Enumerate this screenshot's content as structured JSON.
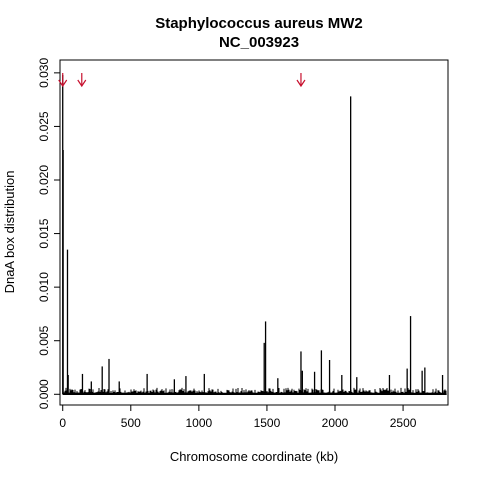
{
  "chart_data": {
    "type": "bar",
    "title": "Staphylococcus aureus MW2",
    "subtitle": "NC_003923",
    "xlabel": "Chromosome coordinate (kb)",
    "ylabel": "DnaA box distribution",
    "xlim": [
      -20,
      2830
    ],
    "ylim": [
      -0.001,
      0.0312
    ],
    "xticks": [
      0,
      500,
      1000,
      1500,
      2000,
      2500
    ],
    "yticks": [
      0.0,
      0.005,
      0.01,
      0.015,
      0.02,
      0.025,
      0.03
    ],
    "ytick_labels": [
      "0.000",
      "0.005",
      "0.010",
      "0.015",
      "0.020",
      "0.025",
      "0.030"
    ],
    "grid": false,
    "baseline_max_kb": 2820,
    "peaks": [
      {
        "x": 0,
        "y": 0.0298
      },
      {
        "x": 3,
        "y": 0.0228
      },
      {
        "x": 35,
        "y": 0.0135
      },
      {
        "x": 40,
        "y": 0.0018
      },
      {
        "x": 145,
        "y": 0.0019
      },
      {
        "x": 210,
        "y": 0.0012
      },
      {
        "x": 290,
        "y": 0.0026
      },
      {
        "x": 340,
        "y": 0.0033
      },
      {
        "x": 415,
        "y": 0.0012
      },
      {
        "x": 620,
        "y": 0.0019
      },
      {
        "x": 820,
        "y": 0.0014
      },
      {
        "x": 905,
        "y": 0.0017
      },
      {
        "x": 1040,
        "y": 0.0019
      },
      {
        "x": 1480,
        "y": 0.0048
      },
      {
        "x": 1490,
        "y": 0.0068
      },
      {
        "x": 1580,
        "y": 0.0015
      },
      {
        "x": 1750,
        "y": 0.004
      },
      {
        "x": 1760,
        "y": 0.0022
      },
      {
        "x": 1850,
        "y": 0.0021
      },
      {
        "x": 1900,
        "y": 0.0041
      },
      {
        "x": 1960,
        "y": 0.0032
      },
      {
        "x": 2050,
        "y": 0.0018
      },
      {
        "x": 2115,
        "y": 0.0278
      },
      {
        "x": 2160,
        "y": 0.0016
      },
      {
        "x": 2400,
        "y": 0.0018
      },
      {
        "x": 2530,
        "y": 0.0024
      },
      {
        "x": 2555,
        "y": 0.0073
      },
      {
        "x": 2640,
        "y": 0.0022
      },
      {
        "x": 2660,
        "y": 0.0025
      },
      {
        "x": 2790,
        "y": 0.0018
      }
    ],
    "arrows": [
      {
        "x": 0,
        "color": "#c8102e"
      },
      {
        "x": 140,
        "color": "#c8102e"
      },
      {
        "x": 1750,
        "color": "#c8102e"
      }
    ]
  }
}
